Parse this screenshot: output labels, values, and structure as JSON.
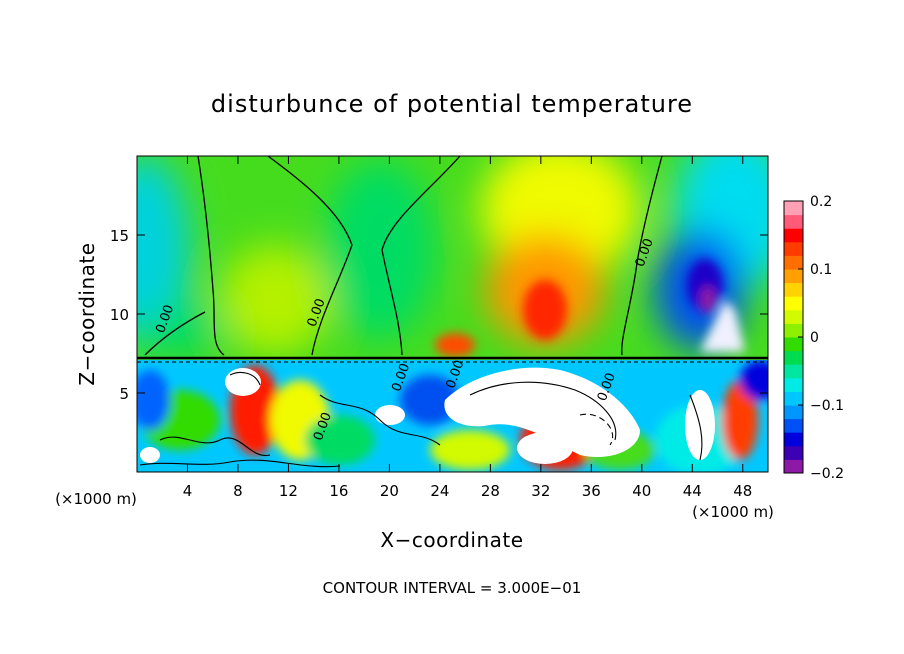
{
  "chart_data": {
    "type": "heatmap",
    "title": "disturbunce of potential temperature",
    "xlabel": "X−coordinate",
    "ylabel": "Z−coordinate",
    "x_unit_left": "(×1000 m)",
    "x_unit_right": "(×1000 m)",
    "footer": "CONTOUR INTERVAL = 3.000E−01",
    "xlim": [
      0,
      50
    ],
    "ylim": [
      0,
      20
    ],
    "x_ticks": [
      {
        "v": 4,
        "label": "4"
      },
      {
        "v": 8,
        "label": "8"
      },
      {
        "v": 12,
        "label": "12"
      },
      {
        "v": 16,
        "label": "16"
      },
      {
        "v": 20,
        "label": "20"
      },
      {
        "v": 24,
        "label": "24"
      },
      {
        "v": 28,
        "label": "28"
      },
      {
        "v": 32,
        "label": "32"
      },
      {
        "v": 36,
        "label": "36"
      },
      {
        "v": 40,
        "label": "40"
      },
      {
        "v": 44,
        "label": "44"
      },
      {
        "v": 48,
        "label": "48"
      }
    ],
    "y_ticks": [
      {
        "v": 5,
        "label": "5"
      },
      {
        "v": 10,
        "label": "10"
      },
      {
        "v": 15,
        "label": "15"
      }
    ],
    "colorbar": {
      "range": [
        -0.2,
        0.2
      ],
      "ticks": [
        {
          "v": 0.2,
          "label": "0.2"
        },
        {
          "v": 0.1,
          "label": "0.1"
        },
        {
          "v": 0,
          "label": "0"
        },
        {
          "v": -0.1,
          "label": "−0.1"
        },
        {
          "v": -0.2,
          "label": "−0.2"
        }
      ],
      "colors": [
        "#8c1aa6",
        "#3c00b4",
        "#0000dc",
        "#0050f5",
        "#0096ff",
        "#00c8ff",
        "#00ebe6",
        "#00e6a0",
        "#00dc50",
        "#32dc00",
        "#8cf000",
        "#d2fa00",
        "#ffff00",
        "#ffd200",
        "#ffa000",
        "#ff6e00",
        "#ff3c00",
        "#ff0000",
        "#ff5a78",
        "#ffa0b4"
      ]
    },
    "contour_labels": [
      {
        "x": 2.5,
        "z": 9.6,
        "label": "0.00"
      },
      {
        "x": 14.5,
        "z": 10.0,
        "label": "0.00"
      },
      {
        "x": 40.5,
        "z": 13.8,
        "label": "0.00"
      },
      {
        "x": 21.2,
        "z": 5.9,
        "label": "0.00"
      },
      {
        "x": 25.5,
        "z": 6.1,
        "label": "0.00"
      },
      {
        "x": 37.5,
        "z": 5.3,
        "label": "0.00"
      },
      {
        "x": 15.0,
        "z": 2.8,
        "label": "0.00"
      }
    ],
    "features": [
      {
        "x": 31,
        "z": 11,
        "value": 0.12,
        "name": "upper warm anomaly"
      },
      {
        "x": 35,
        "z": 9,
        "value": 0.08,
        "name": "upper warm anomaly"
      },
      {
        "x": 45,
        "z": 12,
        "value": -0.18,
        "name": "upper cold anomaly"
      },
      {
        "x": 44,
        "z": 14,
        "value": -0.12,
        "name": "upper cold anomaly"
      },
      {
        "x": 48,
        "z": 15,
        "value": -0.06,
        "name": "upper cold anomaly"
      },
      {
        "x": 1,
        "z": 16,
        "value": -0.04,
        "name": "upper cold anomaly"
      },
      {
        "x": 19,
        "z": 10,
        "value": 0.02,
        "name": "upper green region"
      },
      {
        "x": 27,
        "z": 15,
        "value": 0.06,
        "name": "upper yellow region"
      }
    ]
  }
}
